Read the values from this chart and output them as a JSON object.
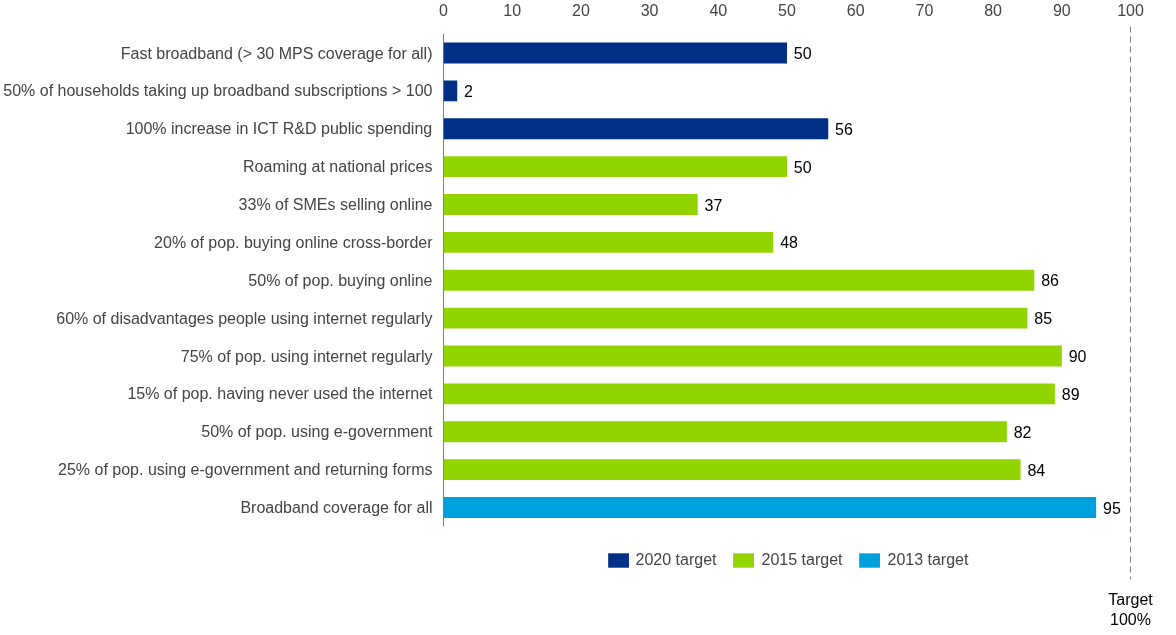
{
  "chart_data": {
    "type": "bar",
    "orientation": "horizontal",
    "categories": [
      "Fast broadband (> 30 MPS coverage for all)",
      "50% of households taking up broadband subscriptions > 100",
      "100% increase in ICT R&D public spending",
      "Roaming at national prices",
      "33% of SMEs selling online",
      "20% of pop. buying online cross-border",
      "50% of pop. buying online",
      "60% of disadvantages people using internet regularly",
      "75% of pop. using internet regularly",
      "15% of pop. having never used the internet",
      "50% of pop. using e-government",
      "25% of pop. using e-government and returning forms",
      "Broadband coverage for all"
    ],
    "series": [
      {
        "name": "2020 target",
        "color": "#002f87",
        "values": [
          50,
          2,
          56,
          null,
          null,
          null,
          null,
          null,
          null,
          null,
          null,
          null,
          null
        ]
      },
      {
        "name": "2015 target",
        "color": "#92d400",
        "values": [
          null,
          null,
          null,
          50,
          37,
          48,
          86,
          85,
          90,
          89,
          82,
          84,
          null
        ]
      },
      {
        "name": "2013 target",
        "color": "#00a0dc",
        "values": [
          null,
          null,
          null,
          null,
          null,
          null,
          null,
          null,
          null,
          null,
          null,
          null,
          95
        ]
      }
    ],
    "xlim": [
      0,
      100
    ],
    "xticks": [
      0,
      10,
      20,
      30,
      40,
      50,
      60,
      70,
      80,
      90,
      100
    ],
    "data_labels": true,
    "grid": false,
    "legend": "bottom",
    "ref_lines": [
      {
        "axis": "x",
        "value": 100,
        "label": "Target\n100%",
        "line_style": "dashed",
        "color": "#000000"
      }
    ]
  }
}
